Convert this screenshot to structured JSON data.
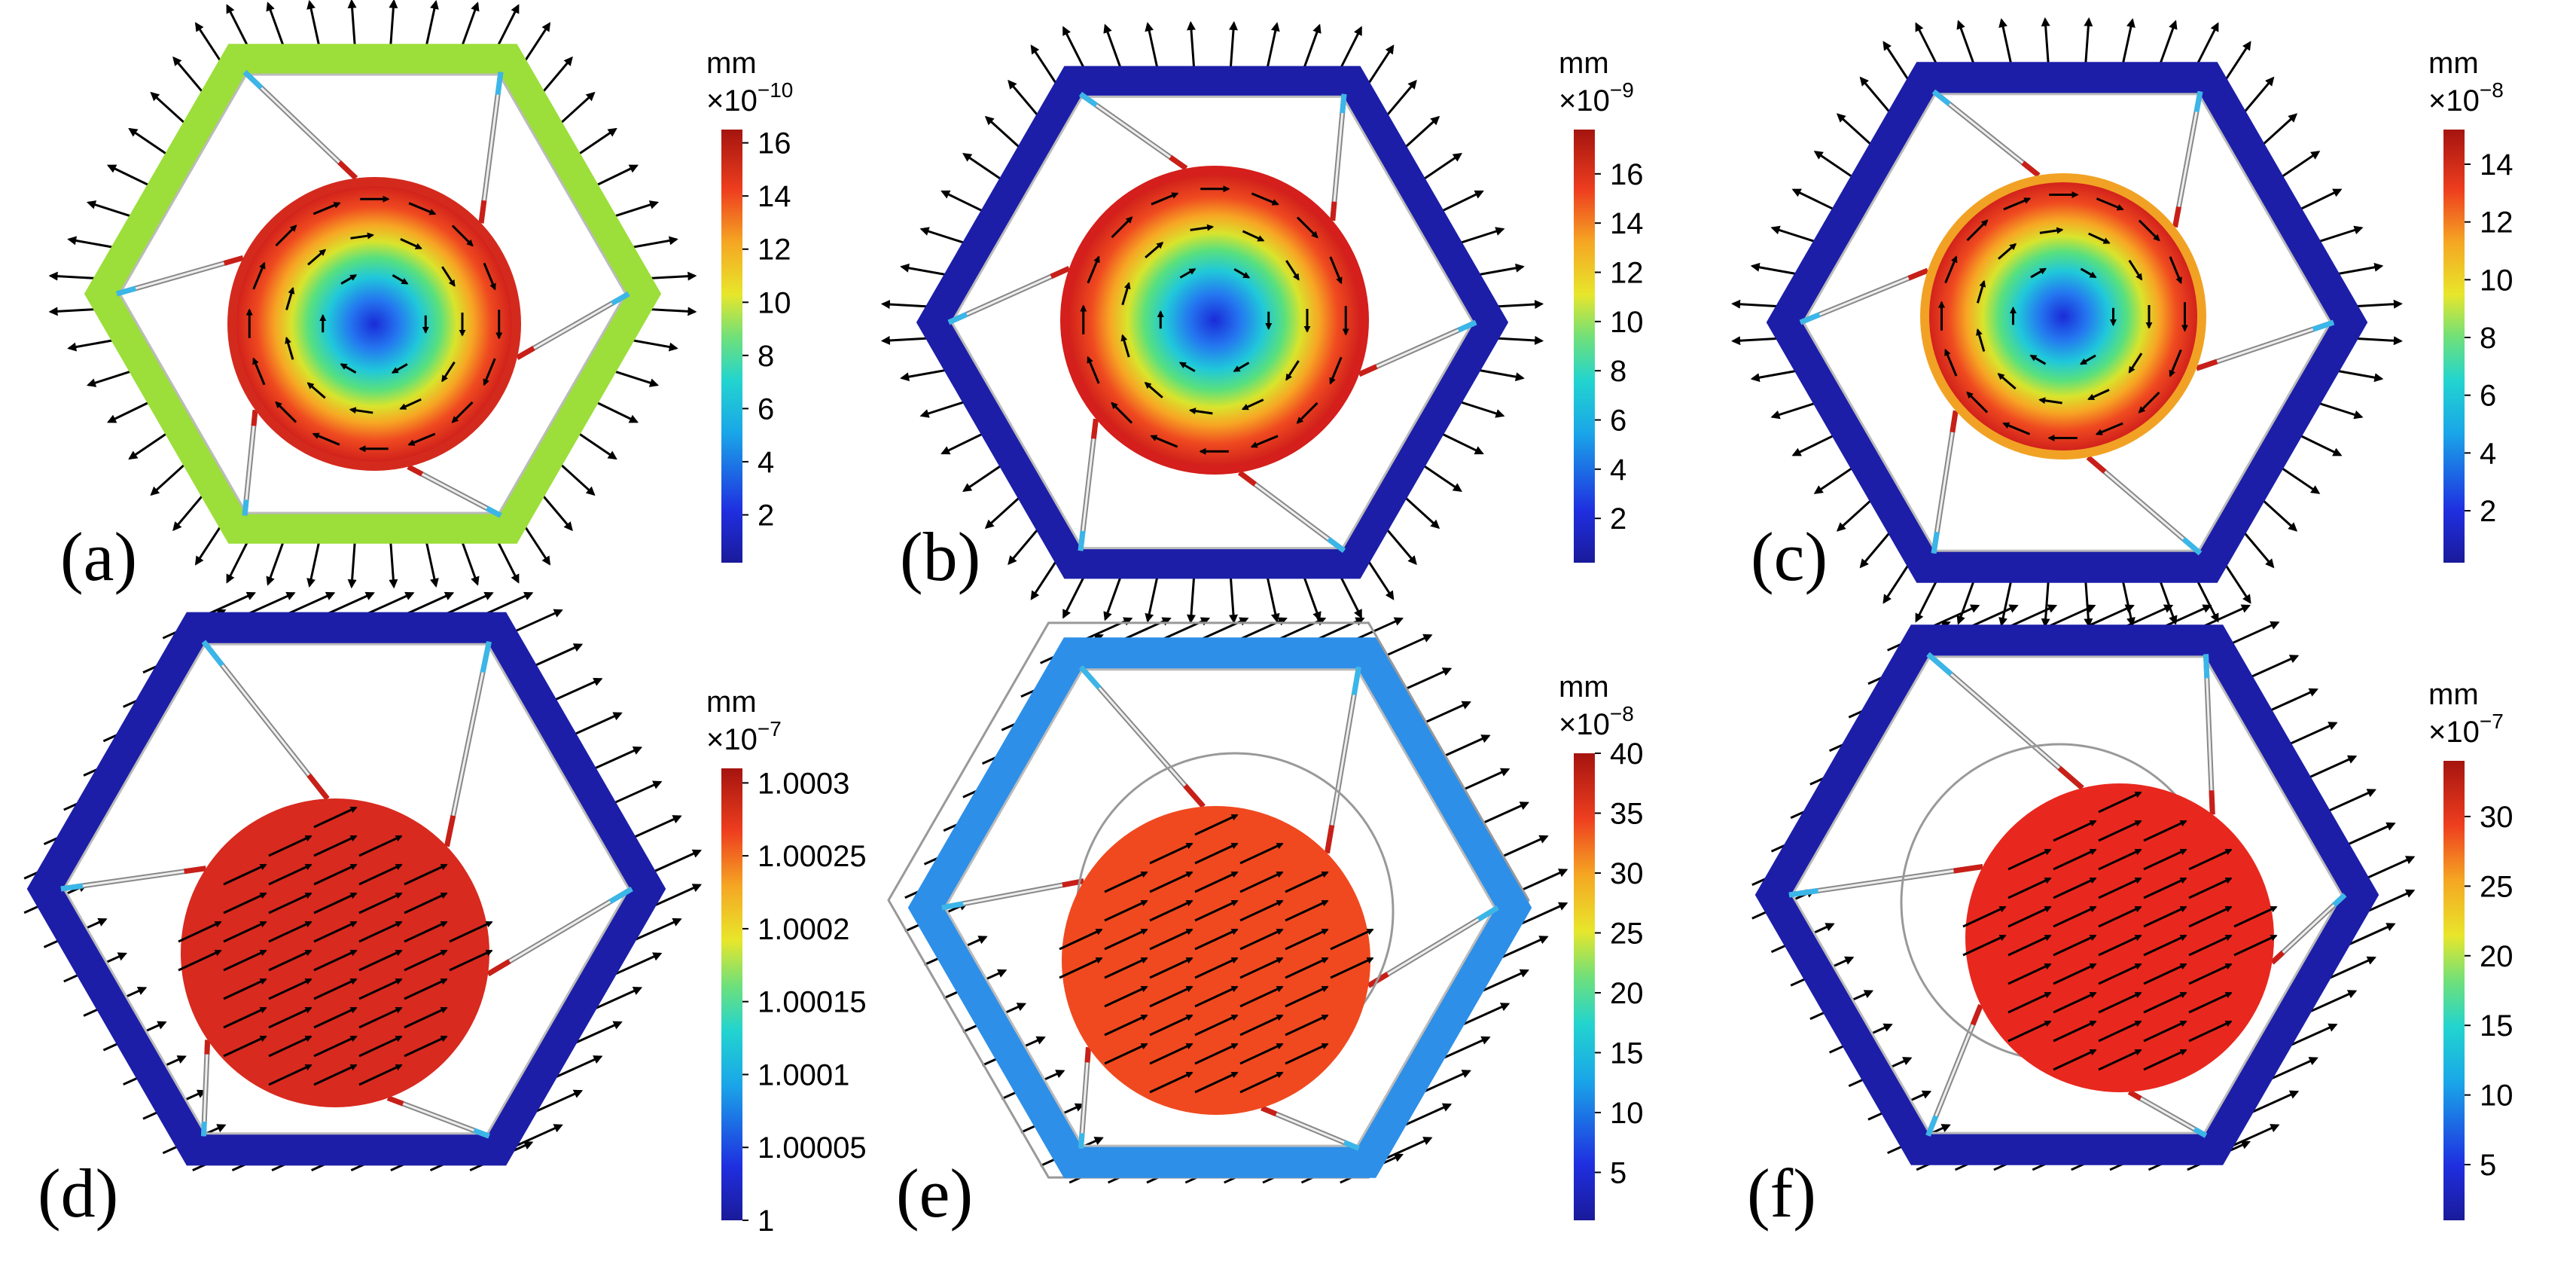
{
  "figure": {
    "panels": [
      {
        "id": "a",
        "label": "(a)",
        "colorbar": {
          "unit": "mm",
          "multiplier": "×10",
          "exponent": "−10",
          "ticks": [
            "16",
            "14",
            "12",
            "10",
            "8",
            "6",
            "4",
            "2"
          ],
          "tick_values": [
            16,
            14,
            12,
            10,
            8,
            6,
            4,
            2
          ],
          "range": [
            0.2,
            16.5
          ]
        },
        "field": "rotation",
        "frame_color": "#9cde3a",
        "disk_color": "radial",
        "rim_color": "#d42a1e"
      },
      {
        "id": "b",
        "label": "(b)",
        "colorbar": {
          "unit": "mm",
          "multiplier": "×10",
          "exponent": "−9",
          "ticks": [
            "16",
            "14",
            "12",
            "10",
            "8",
            "6",
            "4",
            "2"
          ],
          "tick_values": [
            16,
            14,
            12,
            10,
            8,
            6,
            4,
            2
          ],
          "range": [
            0.2,
            17.8
          ]
        },
        "field": "rotation",
        "frame_color": "#1c1ea8",
        "disk_color": "radial",
        "rim_color": "#d41f1c"
      },
      {
        "id": "c",
        "label": "(c)",
        "colorbar": {
          "unit": "mm",
          "multiplier": "×10",
          "exponent": "−8",
          "ticks": [
            "14",
            "12",
            "10",
            "8",
            "6",
            "4",
            "2"
          ],
          "tick_values": [
            14,
            12,
            10,
            8,
            6,
            4,
            2
          ],
          "range": [
            0.2,
            15.2
          ]
        },
        "field": "rotation",
        "frame_color": "#1c1ea8",
        "disk_color": "radial",
        "rim_color": "#f1a224"
      },
      {
        "id": "d",
        "label": "(d)",
        "colorbar": {
          "unit": "mm",
          "multiplier": "×10",
          "exponent": "−7",
          "ticks": [
            "1.0003",
            "1.00025",
            "1.0002",
            "1.00015",
            "1.0001",
            "1.00005",
            "1"
          ],
          "tick_values": [
            1.0003,
            1.00025,
            1.0002,
            1.00015,
            1.0001,
            1.00005,
            1
          ],
          "range": [
            1,
            1.00031
          ]
        },
        "field": "translation",
        "frame_color": "#1c1ea8",
        "disk_color": "#d82a1f",
        "rim_color": "#d82a1f"
      },
      {
        "id": "e",
        "label": "(e)",
        "colorbar": {
          "unit": "mm",
          "multiplier": "×10",
          "exponent": "−8",
          "ticks": [
            "40",
            "35",
            "30",
            "25",
            "20",
            "15",
            "10",
            "5"
          ],
          "tick_values": [
            40,
            35,
            30,
            25,
            20,
            15,
            10,
            5
          ],
          "range": [
            1,
            40
          ]
        },
        "field": "translation",
        "frame_color": "#2d8fe8",
        "disk_color": "#f0491f",
        "rim_color": "#f0491f"
      },
      {
        "id": "f",
        "label": "(f)",
        "colorbar": {
          "unit": "mm",
          "multiplier": "×10",
          "exponent": "−7",
          "ticks": [
            "30",
            "25",
            "20",
            "15",
            "10",
            "5"
          ],
          "tick_values": [
            30,
            25,
            20,
            15,
            10,
            5
          ],
          "range": [
            1,
            34
          ]
        },
        "field": "translation",
        "frame_color": "#1c1ea8",
        "disk_color": "#e8281e",
        "rim_color": "#e8281e"
      }
    ]
  }
}
